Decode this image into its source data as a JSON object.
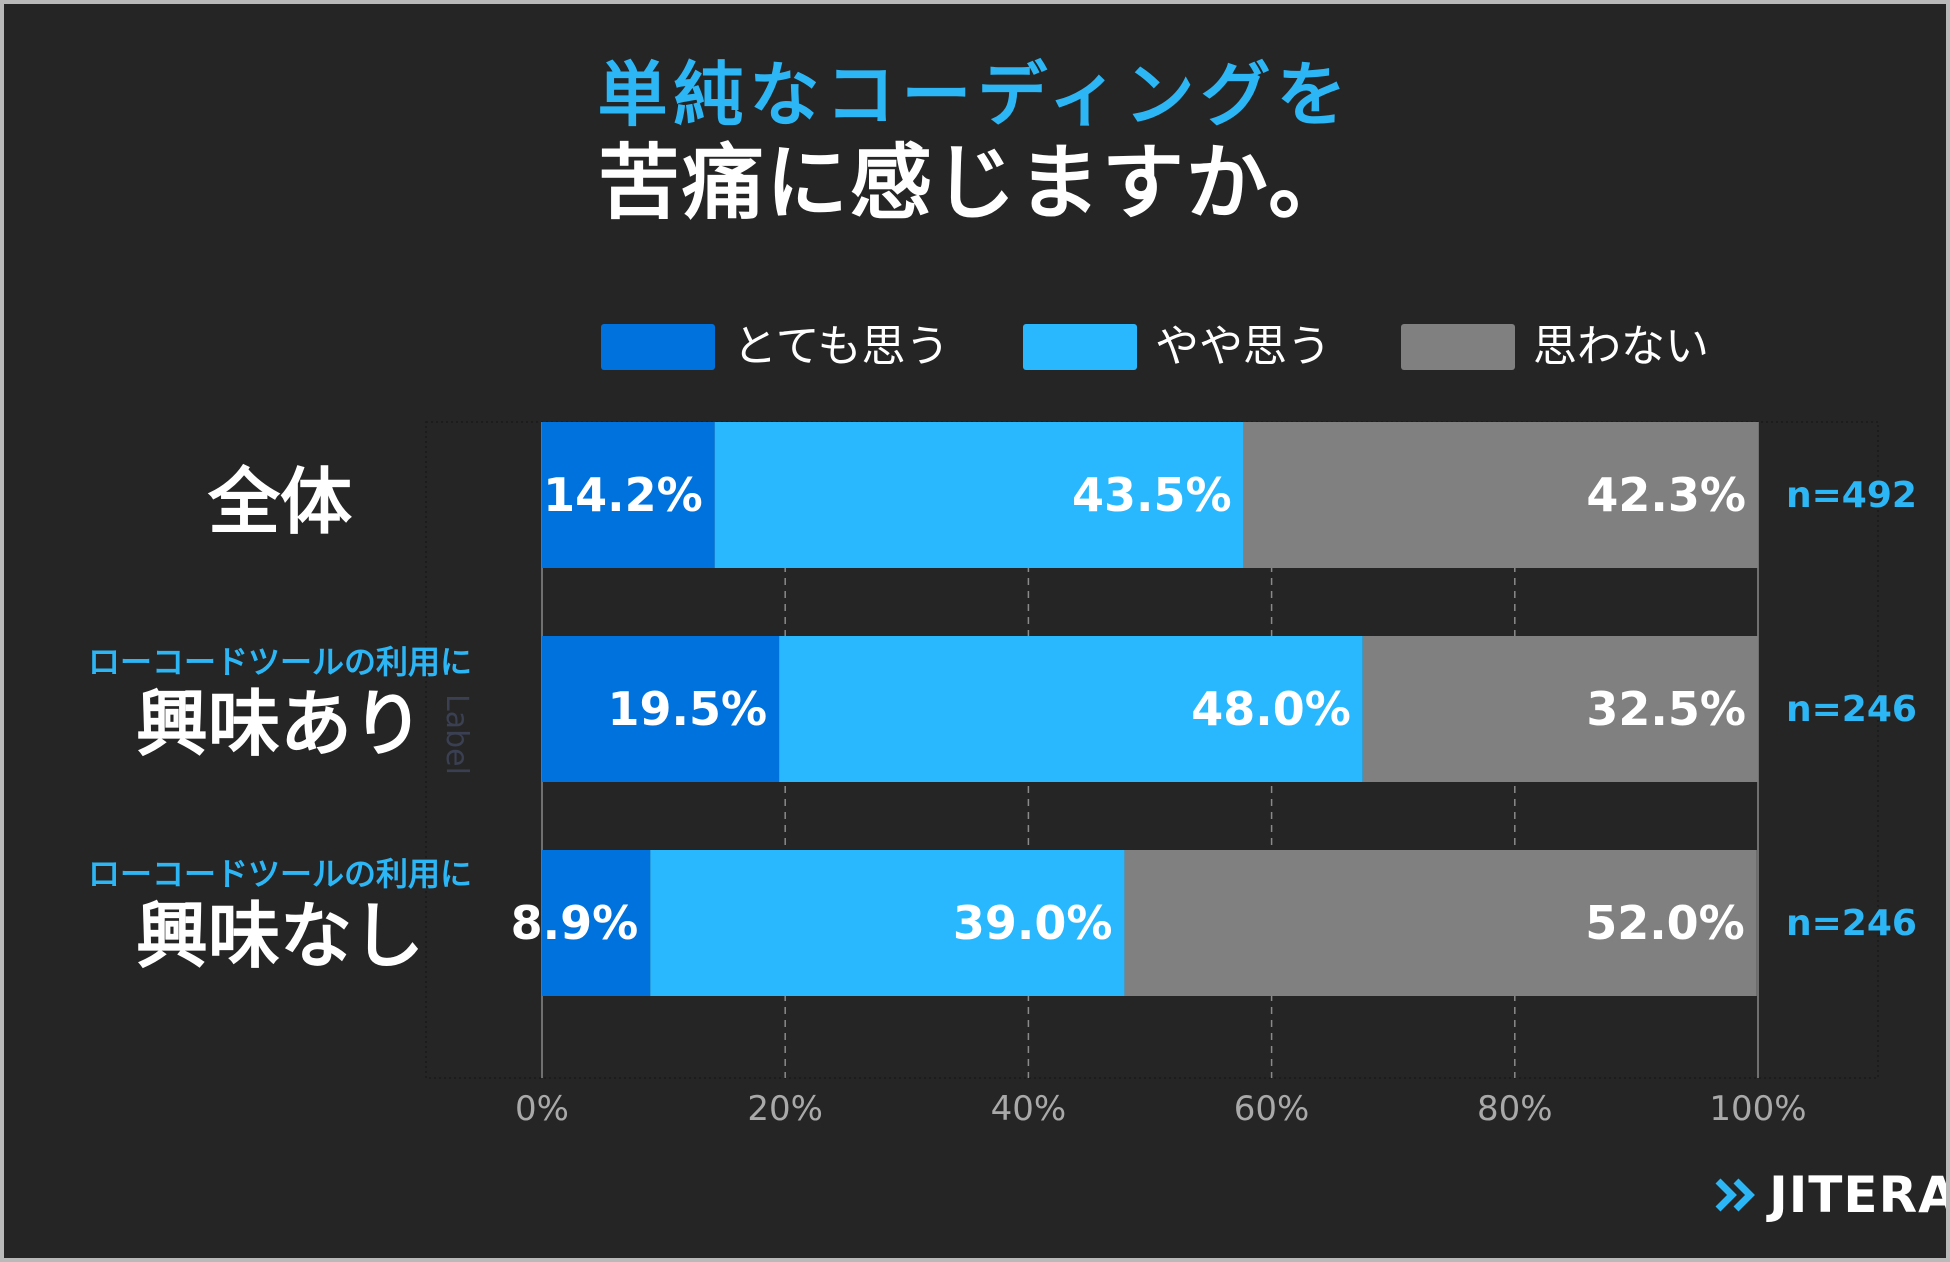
{
  "title": {
    "line1": "単純なコーディングを",
    "line2": "苦痛に感じますか。"
  },
  "colors": {
    "background": "#252525",
    "strong": "#0072de",
    "somewhat": "#29b8fe",
    "no": "#808080",
    "accent_text": "#2db6f5"
  },
  "legend": [
    {
      "label": "とても思う",
      "color": "#0072de"
    },
    {
      "label": "やや思う",
      "color": "#29b8fe"
    },
    {
      "label": "思わない",
      "color": "#808080"
    }
  ],
  "rows": [
    {
      "sub": "",
      "main": "全体",
      "n": "n=492"
    },
    {
      "sub": "ローコードツールの利用に",
      "main": "興味あり",
      "n": "n=246"
    },
    {
      "sub": "ローコードツールの利用に",
      "main": "興味なし",
      "n": "n=246"
    }
  ],
  "axis_hidden_label": "Label",
  "brand": {
    "name": "JITERA",
    "icon": "double-chevron-icon"
  },
  "chart_data": {
    "type": "bar",
    "orientation": "horizontal",
    "stacked": true,
    "categories": [
      "全体",
      "興味あり",
      "興味なし"
    ],
    "series": [
      {
        "name": "とても思う",
        "values": [
          14.2,
          19.5,
          8.9
        ],
        "labels": [
          "14.2%",
          "19.5%",
          "8.9%"
        ]
      },
      {
        "name": "やや思う",
        "values": [
          43.5,
          48.0,
          39.0
        ],
        "labels": [
          "43.5%",
          "48.0%",
          "39.0%"
        ]
      },
      {
        "name": "思わない",
        "values": [
          42.3,
          32.5,
          52.0
        ],
        "labels": [
          "42.3%",
          "32.5%",
          "52.0%"
        ]
      }
    ],
    "xlim": [
      0,
      100
    ],
    "xticks": [
      "0%",
      "20%",
      "40%",
      "60%",
      "80%",
      "100%"
    ],
    "grid": "vertical-dashed",
    "legend_position": "top"
  }
}
